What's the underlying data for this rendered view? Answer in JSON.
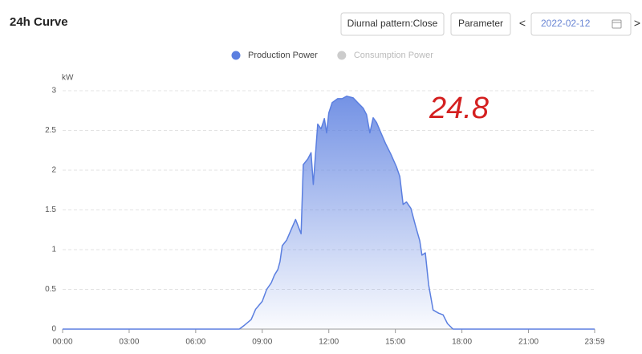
{
  "header": {
    "title": "24h Curve",
    "buttons": [
      "Diurnal pattern:Close",
      "Parameter"
    ],
    "prev": "<",
    "date": "2022-02-12",
    "next": ">"
  },
  "chart_data": {
    "type": "area",
    "y_label": "kW",
    "annotation": "24.8",
    "series": [
      {
        "name": "Production Power",
        "color": "#5b7fe0",
        "x": [
          0,
          7.96,
          8.2,
          8.5,
          8.7,
          9.0,
          9.2,
          9.4,
          9.55,
          9.7,
          9.8,
          9.9,
          10.1,
          10.3,
          10.5,
          10.75,
          10.85,
          11.05,
          11.2,
          11.3,
          11.5,
          11.65,
          11.8,
          11.9,
          12.0,
          12.15,
          12.4,
          12.6,
          12.8,
          13.1,
          13.3,
          13.55,
          13.7,
          13.85,
          14.0,
          14.15,
          14.35,
          14.55,
          14.8,
          15.05,
          15.2,
          15.35,
          15.5,
          15.7,
          15.9,
          16.1,
          16.2,
          16.35,
          16.5,
          16.7,
          16.95,
          17.15,
          17.35,
          17.6,
          23.983
        ],
        "values": [
          0,
          0,
          0.05,
          0.12,
          0.25,
          0.35,
          0.5,
          0.58,
          0.68,
          0.75,
          0.85,
          1.05,
          1.12,
          1.25,
          1.38,
          1.2,
          2.07,
          2.14,
          2.22,
          1.82,
          2.58,
          2.52,
          2.65,
          2.47,
          2.72,
          2.85,
          2.9,
          2.9,
          2.93,
          2.91,
          2.85,
          2.78,
          2.7,
          2.47,
          2.66,
          2.6,
          2.47,
          2.34,
          2.2,
          2.04,
          1.92,
          1.57,
          1.6,
          1.52,
          1.31,
          1.11,
          0.93,
          0.96,
          0.56,
          0.24,
          0.2,
          0.18,
          0.07,
          0,
          0
        ]
      },
      {
        "name": "Consumption Power",
        "color": "#c8c8c8",
        "visible": false,
        "x": [],
        "values": []
      }
    ],
    "xlim": [
      0,
      23.983
    ],
    "xticks": [
      {
        "value": 0,
        "label": "00:00"
      },
      {
        "value": 3,
        "label": "03:00"
      },
      {
        "value": 6,
        "label": "06:00"
      },
      {
        "value": 9,
        "label": "09:00"
      },
      {
        "value": 12,
        "label": "12:00"
      },
      {
        "value": 15,
        "label": "15:00"
      },
      {
        "value": 18,
        "label": "18:00"
      },
      {
        "value": 21,
        "label": "21:00"
      },
      {
        "value": 23.983,
        "label": "23:59"
      }
    ],
    "ylim": [
      0,
      3
    ],
    "yticks": [
      0,
      0.5,
      1,
      1.5,
      2,
      2.5,
      3
    ],
    "grid": true
  }
}
